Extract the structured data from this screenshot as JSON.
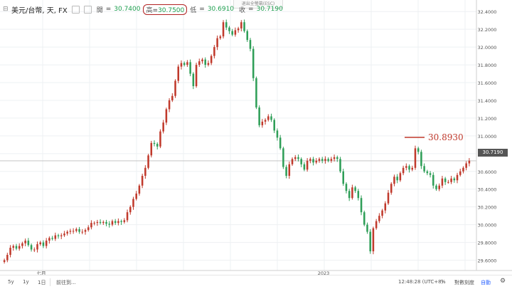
{
  "header": {
    "symbol": "美元/台幣, 天, FX",
    "labels": {
      "open": "開",
      "high": "高",
      "low": "低",
      "close": "收"
    },
    "open": "30.7400",
    "high": "30.7500",
    "low": "30.6910",
    "close": "30.7190",
    "value_color": "#1e9f4f"
  },
  "exit_fullscreen": "退出全螢幕(ESC)",
  "annotation": {
    "text": "30.8930",
    "color": "#c0392b"
  },
  "last_price_tag": "30.7190",
  "bottom_bar": {
    "range_5y": "5y",
    "range_1y": "1y",
    "range_1d": "1日",
    "goto": "前往到...",
    "time": "12:48:28 (UTC+8)",
    "percent": "%",
    "log": "對數刻度",
    "auto": "自動",
    "settings_icon": "gear-icon"
  },
  "chart_data": {
    "type": "candlestick",
    "x_labels": [
      "七月",
      "2023"
    ],
    "y_ticks": [
      "29.6000",
      "29.8000",
      "30.0000",
      "30.2000",
      "30.4000",
      "30.6000",
      "30.8000",
      "31.0000",
      "31.2000",
      "31.4000",
      "31.6000",
      "31.8000",
      "32.0000",
      "32.2000",
      "32.4000"
    ],
    "ylim": [
      29.5,
      32.45
    ],
    "current_price": 30.719,
    "colors": {
      "up": "#c0392b",
      "down": "#2e9e57"
    },
    "close": [
      29.6,
      29.66,
      29.74,
      29.76,
      29.73,
      29.76,
      29.79,
      29.82,
      29.77,
      29.72,
      29.72,
      29.78,
      29.8,
      29.76,
      29.82,
      29.85,
      29.84,
      29.88,
      29.87,
      29.88,
      29.9,
      29.92,
      29.93,
      29.93,
      29.95,
      29.92,
      29.92,
      29.94,
      29.97,
      30.02,
      30.02,
      30.03,
      30.02,
      30.03,
      30.01,
      30.0,
      30.04,
      30.02,
      30.04,
      30.03,
      30.05,
      30.14,
      30.2,
      30.29,
      30.35,
      30.44,
      30.55,
      30.64,
      30.78,
      30.92,
      30.91,
      30.88,
      31.05,
      31.15,
      31.3,
      31.4,
      31.45,
      31.62,
      31.78,
      31.82,
      31.8,
      31.83,
      31.7,
      31.56,
      31.8,
      31.84,
      31.86,
      31.8,
      31.82,
      31.9,
      32.0,
      32.1,
      32.12,
      32.28,
      32.22,
      32.18,
      32.14,
      32.19,
      32.21,
      32.28,
      32.18,
      32.08,
      31.98,
      31.65,
      31.32,
      31.12,
      31.16,
      31.18,
      31.22,
      31.18,
      31.06,
      30.98,
      30.86,
      30.65,
      30.55,
      30.68,
      30.74,
      30.76,
      30.74,
      30.68,
      30.62,
      30.72,
      30.74,
      30.7,
      30.72,
      30.74,
      30.72,
      30.74,
      30.72,
      30.74,
      30.76,
      30.74,
      30.6,
      30.46,
      30.38,
      30.3,
      30.42,
      30.38,
      30.3,
      30.14,
      30.0,
      29.92,
      29.7,
      29.96,
      30.04,
      30.1,
      30.16,
      30.24,
      30.36,
      30.46,
      30.54,
      30.5,
      30.58,
      30.64,
      30.66,
      30.62,
      30.64,
      30.86,
      30.82,
      30.66,
      30.6,
      30.58,
      30.56,
      30.44,
      30.4,
      30.44,
      30.52,
      30.48,
      30.48,
      30.52,
      30.5,
      30.56,
      30.6,
      30.64,
      30.69,
      30.72
    ]
  }
}
